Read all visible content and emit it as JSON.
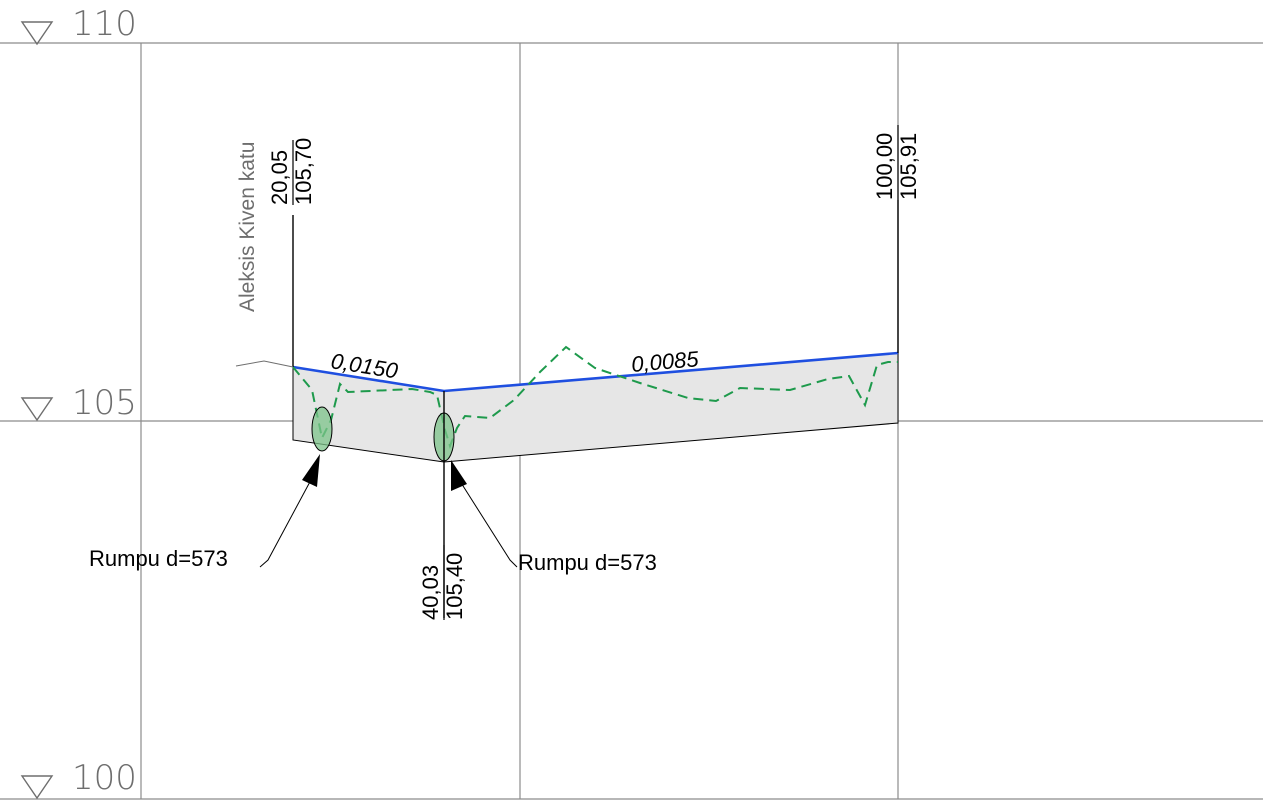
{
  "levels": {
    "top": "110",
    "middle": "105",
    "bottom": "100"
  },
  "street_name": "Aleksis Kiven katu",
  "nodes": {
    "start": {
      "station": "20,05",
      "elevation": "105,70"
    },
    "middle": {
      "station": "40,03",
      "elevation": "105,40"
    },
    "end": {
      "station": "100,00",
      "elevation": "105,91"
    }
  },
  "slopes": {
    "left": "0,0150",
    "right": "0,0085"
  },
  "callouts": {
    "left": "Rumpu d=573",
    "right": "Rumpu d=573"
  },
  "colors": {
    "pipe_top": "#1f4fe0",
    "ground_line": "#1e9a4c",
    "pipe_fill": "#e6e6e6",
    "grid": "#8c8c8c",
    "wells": "#7cc389"
  }
}
